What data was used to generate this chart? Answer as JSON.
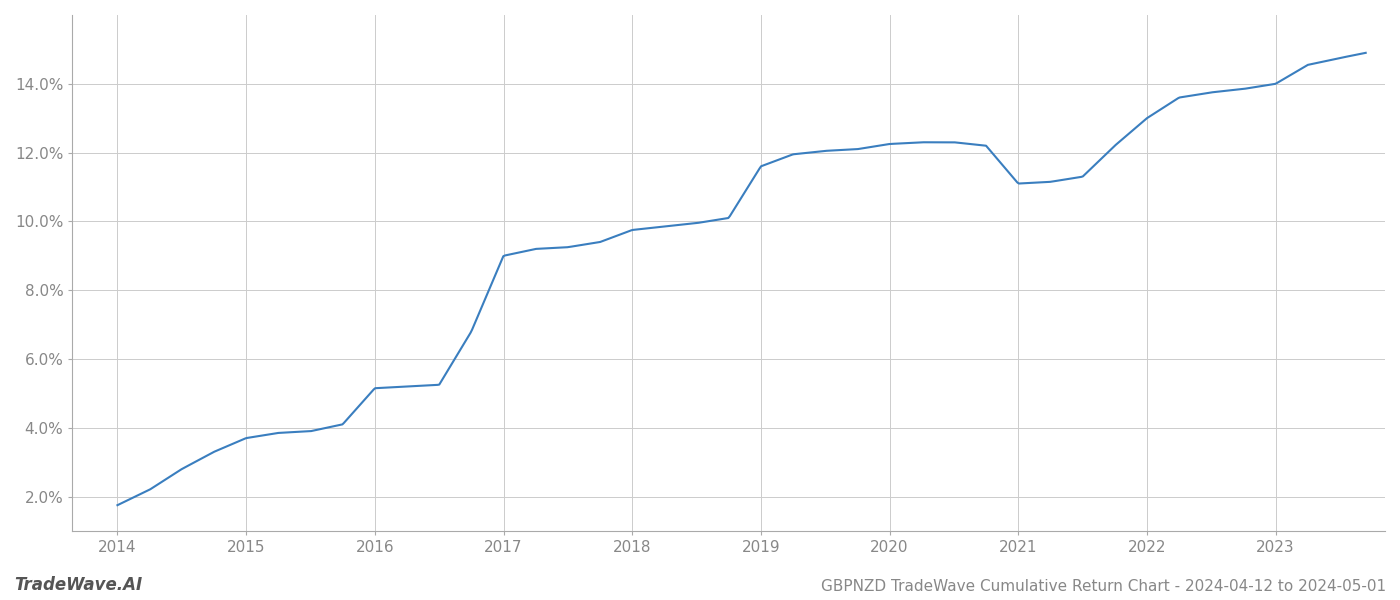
{
  "title": "GBPNZD TradeWave Cumulative Return Chart - 2024-04-12 to 2024-05-01",
  "watermark": "TradeWave.AI",
  "line_color": "#3a7ebf",
  "background_color": "#ffffff",
  "grid_color": "#cccccc",
  "x_years": [
    2014,
    2015,
    2016,
    2017,
    2018,
    2019,
    2020,
    2021,
    2022,
    2023
  ],
  "key_x": [
    2014.0,
    2014.25,
    2014.5,
    2014.75,
    2015.0,
    2015.25,
    2015.5,
    2015.75,
    2016.0,
    2016.25,
    2016.5,
    2016.75,
    2017.0,
    2017.25,
    2017.5,
    2017.75,
    2018.0,
    2018.25,
    2018.5,
    2018.75,
    2019.0,
    2019.25,
    2019.5,
    2019.75,
    2020.0,
    2020.25,
    2020.5,
    2020.75,
    2021.0,
    2021.25,
    2021.5,
    2021.75,
    2022.0,
    2022.25,
    2022.5,
    2022.75,
    2023.0,
    2023.25,
    2023.5,
    2023.7
  ],
  "key_y": [
    1.75,
    2.2,
    2.8,
    3.3,
    3.7,
    3.85,
    3.9,
    4.1,
    5.15,
    5.2,
    5.25,
    6.8,
    9.0,
    9.2,
    9.25,
    9.4,
    9.75,
    9.85,
    9.95,
    10.1,
    11.6,
    11.95,
    12.05,
    12.1,
    12.25,
    12.3,
    12.3,
    12.2,
    11.1,
    11.15,
    11.3,
    12.2,
    13.0,
    13.6,
    13.75,
    13.85,
    14.0,
    14.55,
    14.75,
    14.9
  ],
  "ylim": [
    1.0,
    16.0
  ],
  "yticks": [
    2.0,
    4.0,
    6.0,
    8.0,
    10.0,
    12.0,
    14.0
  ],
  "xlim": [
    2013.65,
    2023.85
  ],
  "line_width": 1.5,
  "title_fontsize": 11,
  "watermark_fontsize": 12,
  "axis_label_color": "#888888",
  "tick_fontsize": 11,
  "spine_color": "#aaaaaa"
}
